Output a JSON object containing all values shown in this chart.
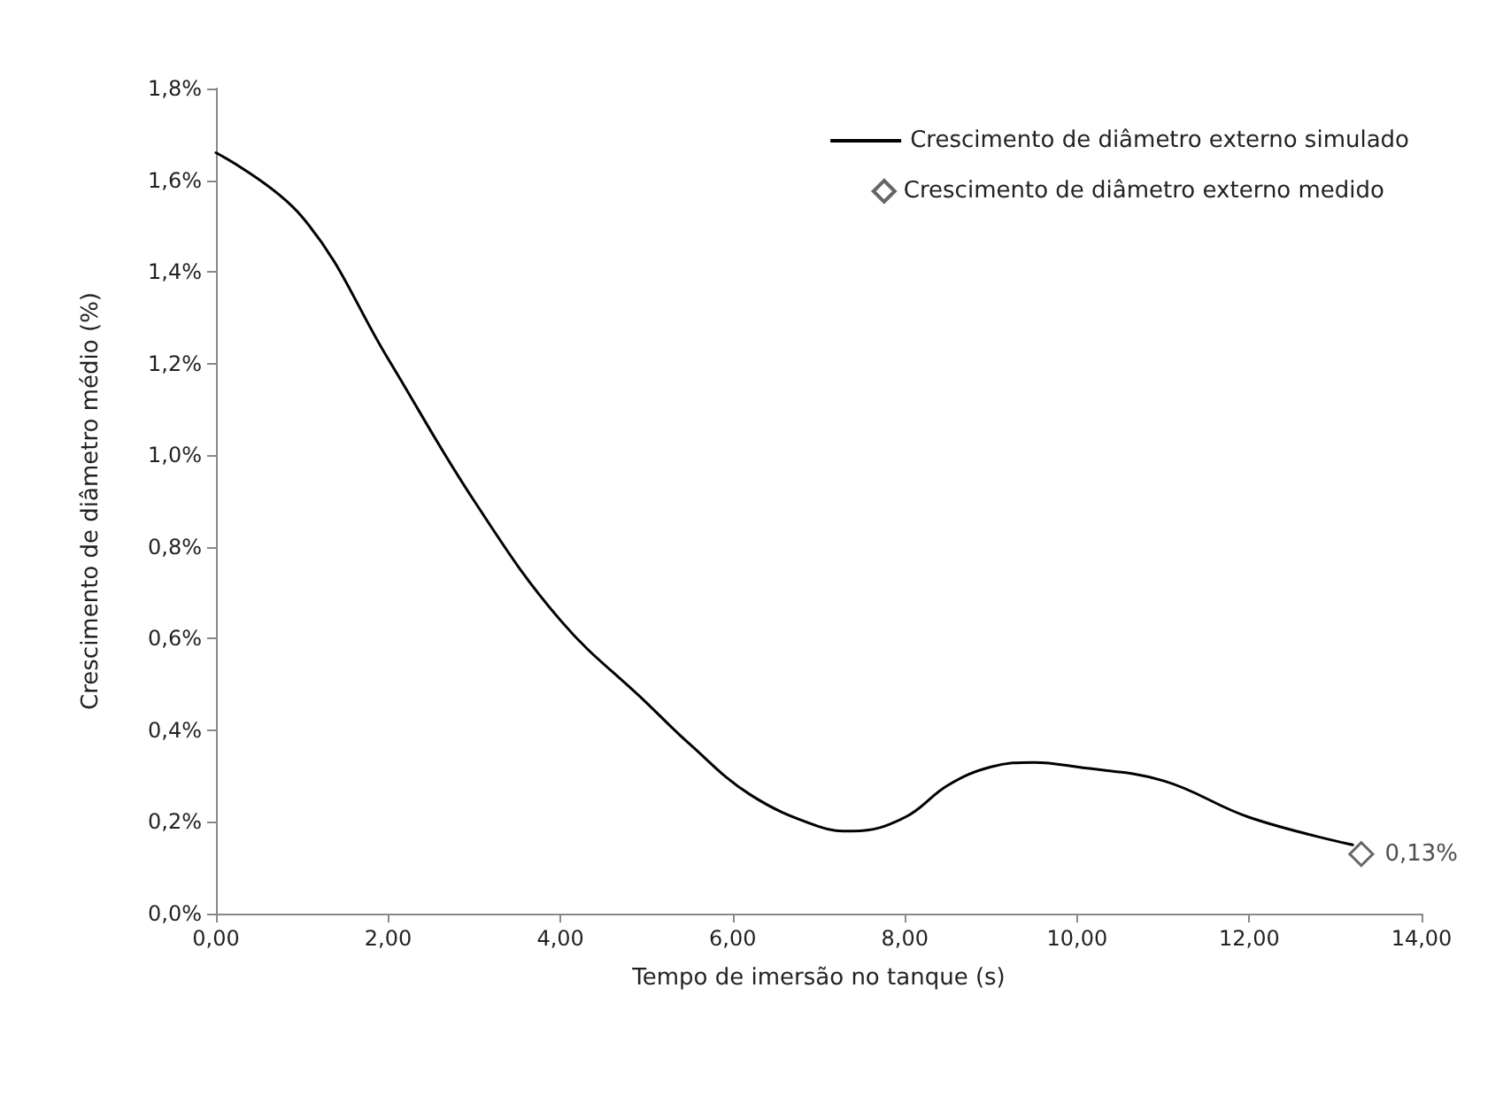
{
  "chart_data": {
    "type": "line",
    "xlabel": "Tempo de imersão no tanque (s)",
    "ylabel": "Crescimento de diâmetro médio (%)",
    "xlim": [
      0,
      14
    ],
    "xticks": [
      {
        "value": 0,
        "label": "0,00"
      },
      {
        "value": 2,
        "label": "2,00"
      },
      {
        "value": 4,
        "label": "4,00"
      },
      {
        "value": 6,
        "label": "6,00"
      },
      {
        "value": 8,
        "label": "8,00"
      },
      {
        "value": 10,
        "label": "10,00"
      },
      {
        "value": 12,
        "label": "12,00"
      },
      {
        "value": 14,
        "label": "14,00"
      }
    ],
    "ylim": [
      0,
      1.8
    ],
    "yticks": [
      {
        "value": 0,
        "label": "0,0%"
      },
      {
        "value": 0.2,
        "label": "0,2%"
      },
      {
        "value": 0.4,
        "label": "0,4%"
      },
      {
        "value": 0.6,
        "label": "0,6%"
      },
      {
        "value": 0.8,
        "label": "0,8%"
      },
      {
        "value": 1.0,
        "label": "1,0%"
      },
      {
        "value": 1.2,
        "label": "1,2%"
      },
      {
        "value": 1.4,
        "label": "1,4%"
      },
      {
        "value": 1.6,
        "label": "1,6%"
      },
      {
        "value": 1.8,
        "label": "1,8%"
      }
    ],
    "grid": false,
    "legend": "top right",
    "series": [
      {
        "name": "Crescimento de diâmetro externo simulado",
        "color": "#000000",
        "marker": "none",
        "line_style": "solid",
        "x": [
          0,
          1,
          2,
          3,
          4,
          5,
          5.5,
          6.2,
          7,
          7.4,
          8,
          8.5,
          9,
          9.5,
          10,
          11,
          12,
          13.2
        ],
        "values": [
          1.66,
          1.52,
          1.21,
          0.9,
          0.64,
          0.46,
          0.37,
          0.26,
          0.19,
          0.18,
          0.21,
          0.28,
          0.32,
          0.33,
          0.32,
          0.29,
          0.21,
          0.15
        ]
      },
      {
        "name": "Crescimento de diâmetro externo medido",
        "type": "scatter",
        "color": "#404040",
        "marker": "diamond",
        "x": [
          13.3
        ],
        "values": [
          0.13
        ],
        "value_labels": [
          "0,13%"
        ]
      }
    ]
  }
}
